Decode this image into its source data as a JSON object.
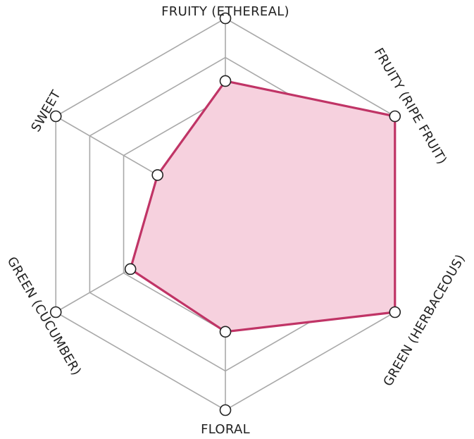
{
  "chart_data": {
    "type": "radar",
    "axes": [
      "FRUITY (ETHEREAL)",
      "FRUITY (RIPE FRUIT)",
      "GREEN (HERBACEOUS)",
      "FLORAL",
      "GREEN (CUCUMBER)",
      "SWEET"
    ],
    "series": [
      {
        "values": [
          3.4,
          5.0,
          5.0,
          3.0,
          2.8,
          2.0
        ]
      }
    ],
    "rlim": [
      0,
      5
    ],
    "rings": 5,
    "grid": true,
    "legend": "none"
  },
  "colors": {
    "series_stroke": "#c03466",
    "series_fill": "#f6d1de",
    "grid": "#a9a9a9",
    "marker_fill": "#ffffff",
    "marker_stroke": "#222222",
    "label": "#222222"
  }
}
